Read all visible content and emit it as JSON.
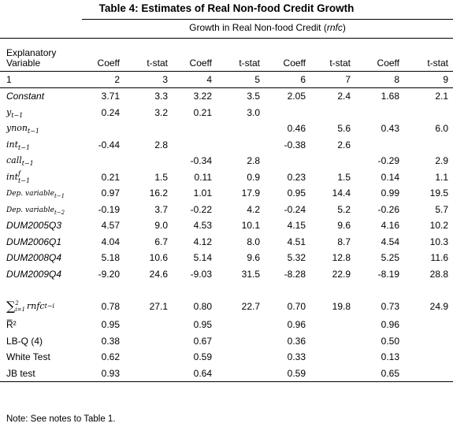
{
  "title": "Table 4: Estimates of Real Non-food Credit Growth",
  "dependent_header": "Growth in Real Non-food Credit (",
  "dependent_abbr": "rnfc",
  "dependent_close": ")",
  "first_col_header": "Explanatory Variable",
  "col_headers": [
    "Coeff",
    "t-stat",
    "Coeff",
    "t-stat",
    "Coeff",
    "t-stat",
    "Coeff",
    "t-stat"
  ],
  "col_index": [
    "1",
    "2",
    "3",
    "4",
    "5",
    "6",
    "7",
    "8",
    "9"
  ],
  "rows": [
    {
      "var": "Constant",
      "vals": [
        "3.71",
        "3.3",
        "3.22",
        "3.5",
        "2.05",
        "2.4",
        "1.68",
        "2.1"
      ]
    },
    {
      "var_base": "y",
      "var_sub": "t−1",
      "vals": [
        "0.24",
        "3.2",
        "0.21",
        "3.0",
        "",
        "",
        "",
        ""
      ]
    },
    {
      "var_base": "ynon",
      "var_sub": "t−1",
      "vals": [
        "",
        "",
        "",
        "",
        "0.46",
        "5.6",
        "0.43",
        "6.0"
      ]
    },
    {
      "var_base": "int",
      "var_sub": "t−1",
      "vals": [
        "-0.44",
        "2.8",
        "",
        "",
        "-0.38",
        "2.6",
        "",
        ""
      ]
    },
    {
      "var_base": "call",
      "var_sub": "t−1",
      "vals": [
        "",
        "",
        "-0.34",
        "2.8",
        "",
        "",
        "-0.29",
        "2.9"
      ]
    },
    {
      "var_base": "int",
      "var_sup": "f",
      "var_sub": "t−1",
      "vals": [
        "0.21",
        "1.5",
        "0.11",
        "0.9",
        "0.23",
        "1.5",
        "0.14",
        "1.1"
      ]
    },
    {
      "var_small": "Dep. variable",
      "var_sub": "t−1",
      "vals": [
        "0.97",
        "16.2",
        "1.01",
        "17.9",
        "0.95",
        "14.4",
        "0.99",
        "19.5"
      ]
    },
    {
      "var_small": "Dep. variable",
      "var_sub": "t−2",
      "vals": [
        "-0.19",
        "3.7",
        "-0.22",
        "4.2",
        "-0.24",
        "5.2",
        "-0.26",
        "5.7"
      ]
    },
    {
      "var": "DUM2005Q3",
      "vals": [
        "4.57",
        "9.0",
        "4.53",
        "10.1",
        "4.15",
        "9.6",
        "4.16",
        "10.2"
      ]
    },
    {
      "var": "DUM2006Q1",
      "vals": [
        "4.04",
        "6.7",
        "4.12",
        "8.0",
        "4.51",
        "8.7",
        "4.54",
        "10.3"
      ]
    },
    {
      "var": "DUM2008Q4",
      "vals": [
        "5.18",
        "10.6",
        "5.14",
        "9.6",
        "5.32",
        "12.8",
        "5.25",
        "11.6"
      ]
    },
    {
      "var": "DUM2009Q4",
      "vals": [
        "-9.20",
        "24.6",
        "-9.03",
        "31.5",
        "-8.28",
        "22.9",
        "-8.19",
        "28.8"
      ]
    }
  ],
  "sum_row": {
    "sigma": "∑",
    "sup": "2",
    "sub": "i=1",
    "base": "rnfc",
    "sub2": "t−i",
    "vals": [
      "0.78",
      "27.1",
      "0.80",
      "22.7",
      "0.70",
      "19.8",
      "0.73",
      "24.9"
    ]
  },
  "stat_rows": [
    {
      "label": "R̅²",
      "vals": [
        "0.95",
        "",
        "0.95",
        "",
        "0.96",
        "",
        "0.96",
        ""
      ]
    },
    {
      "label": "LB-Q (4)",
      "vals": [
        "0.38",
        "",
        "0.67",
        "",
        "0.36",
        "",
        "0.50",
        ""
      ]
    },
    {
      "label": "White Test",
      "vals": [
        "0.62",
        "",
        "0.59",
        "",
        "0.33",
        "",
        "0.13",
        ""
      ]
    },
    {
      "label": "JB test",
      "vals": [
        "0.93",
        "",
        "0.64",
        "",
        "0.59",
        "",
        "0.65",
        ""
      ]
    }
  ],
  "note": "Note: See notes to Table 1."
}
